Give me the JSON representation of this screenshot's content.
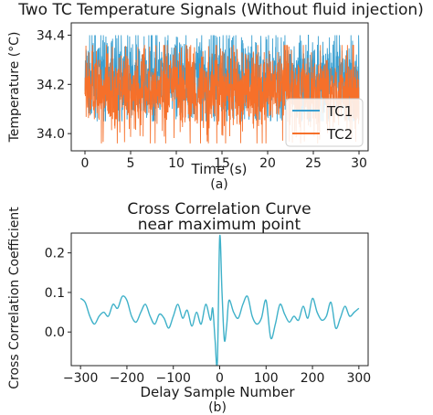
{
  "chart_data": [
    {
      "type": "line",
      "title": "Two TC Temperature Signals (Without fluid injection)",
      "xlabel": "Time (s)",
      "ylabel": "Temperature (°C)",
      "caption": "(a)",
      "xlim": [
        -1.5,
        31
      ],
      "ylim": [
        33.93,
        34.45
      ],
      "xticks": [
        0,
        5,
        10,
        15,
        20,
        25,
        30
      ],
      "yticks": [
        34.0,
        34.2,
        34.4
      ],
      "ytick_labels": [
        "34.0",
        "34.2",
        "34.4"
      ],
      "legend": "lower-right",
      "series": [
        {
          "name": "TC1",
          "color": "#3a9fd0",
          "center": 34.22,
          "spread": 0.1,
          "range": [
            34.05,
            34.4
          ],
          "x_range": [
            0,
            30
          ]
        },
        {
          "name": "TC2",
          "color": "#f6702a",
          "center": 34.18,
          "spread": 0.1,
          "range": [
            33.96,
            34.36
          ],
          "x_range": [
            0,
            30
          ]
        }
      ]
    },
    {
      "type": "line",
      "title": "Cross Correlation Curve\nnear maximum point",
      "title_lines": [
        "Cross Correlation Curve",
        "near maximum point"
      ],
      "xlabel": "Delay Sample Number",
      "ylabel": "Cross Correlation Coefficient",
      "caption": "(b)",
      "xlim": [
        -320,
        320
      ],
      "ylim": [
        -0.085,
        0.25
      ],
      "xticks": [
        -300,
        -200,
        -100,
        0,
        100,
        200,
        300
      ],
      "xtick_labels": [
        "−300",
        "−200",
        "−100",
        "0",
        "100",
        "200",
        "300"
      ],
      "yticks": [
        0.0,
        0.1,
        0.2
      ],
      "ytick_labels": [
        "0.0",
        "0.1",
        "0.2"
      ],
      "series": [
        {
          "color": "#3fb1c9",
          "x": [
            -300,
            -290,
            -280,
            -270,
            -260,
            -250,
            -240,
            -230,
            -220,
            -210,
            -200,
            -190,
            -180,
            -170,
            -160,
            -150,
            -140,
            -130,
            -120,
            -110,
            -100,
            -90,
            -80,
            -70,
            -60,
            -50,
            -40,
            -30,
            -20,
            -15,
            -10,
            -5,
            0,
            5,
            10,
            15,
            20,
            30,
            40,
            50,
            60,
            70,
            80,
            90,
            100,
            110,
            120,
            130,
            140,
            150,
            160,
            170,
            180,
            190,
            200,
            210,
            220,
            230,
            240,
            250,
            260,
            270,
            280,
            290,
            300
          ],
          "y": [
            0.085,
            0.075,
            0.04,
            0.02,
            0.04,
            0.05,
            0.04,
            0.07,
            0.06,
            0.09,
            0.08,
            0.04,
            0.025,
            0.05,
            0.07,
            0.04,
            0.02,
            0.045,
            0.035,
            0.01,
            0.04,
            0.07,
            0.035,
            0.055,
            0.015,
            0.05,
            0.02,
            0.07,
            0.03,
            0.06,
            -0.02,
            -0.075,
            0.24,
            0.1,
            -0.02,
            0.015,
            0.08,
            0.05,
            0.035,
            0.07,
            0.09,
            0.04,
            0.02,
            0.035,
            0.08,
            -0.015,
            0.02,
            0.07,
            0.045,
            0.025,
            0.04,
            0.03,
            0.065,
            0.035,
            0.085,
            0.05,
            0.03,
            0.04,
            0.075,
            0.01,
            0.035,
            0.065,
            0.04,
            0.05,
            0.06
          ]
        }
      ]
    }
  ]
}
